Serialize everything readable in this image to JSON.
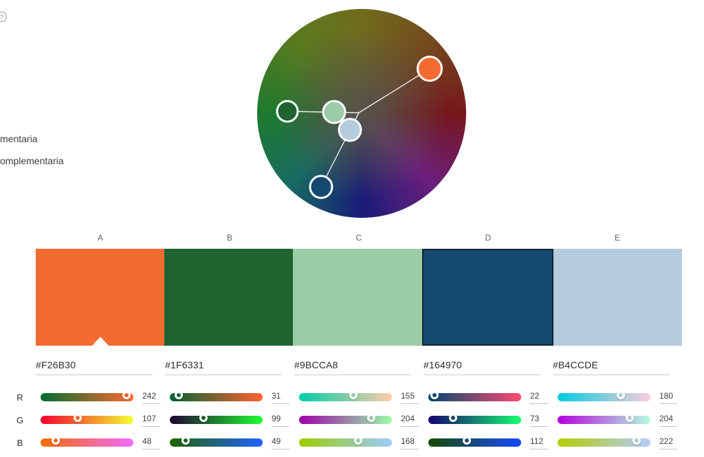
{
  "help": {
    "glyph": "?"
  },
  "harmony": {
    "items": [
      {
        "label": "mentaria"
      },
      {
        "label": "omplementaria"
      }
    ]
  },
  "wheel": {
    "handles": [
      {
        "id": "a",
        "color": "#F26B30",
        "active": true
      },
      {
        "id": "b",
        "color": "#1F6331",
        "active": false
      },
      {
        "id": "c",
        "color": "#9BCCA8",
        "active": false
      },
      {
        "id": "d",
        "color": "#164970",
        "active": false
      },
      {
        "id": "e",
        "color": "#B4CCDE",
        "active": false
      }
    ]
  },
  "palette": {
    "column_labels": [
      "A",
      "B",
      "C",
      "D",
      "E"
    ],
    "swatches": [
      {
        "label": "A",
        "hex": "#F26B30",
        "r": 242,
        "g": 107,
        "b": 48,
        "base": true,
        "selected": false
      },
      {
        "label": "B",
        "hex": "#1F6331",
        "r": 31,
        "g": 99,
        "b": 49,
        "base": false,
        "selected": false
      },
      {
        "label": "C",
        "hex": "#9BCCA8",
        "r": 155,
        "g": 204,
        "b": 168,
        "base": false,
        "selected": false
      },
      {
        "label": "D",
        "hex": "#164970",
        "r": 22,
        "g": 73,
        "b": 112,
        "base": false,
        "selected": true
      },
      {
        "label": "E",
        "hex": "#B4CCDE",
        "r": 180,
        "g": 204,
        "b": 222,
        "base": false,
        "selected": false
      }
    ]
  },
  "sliders": {
    "channel_labels": [
      "R",
      "G",
      "B"
    ],
    "max": 255
  }
}
